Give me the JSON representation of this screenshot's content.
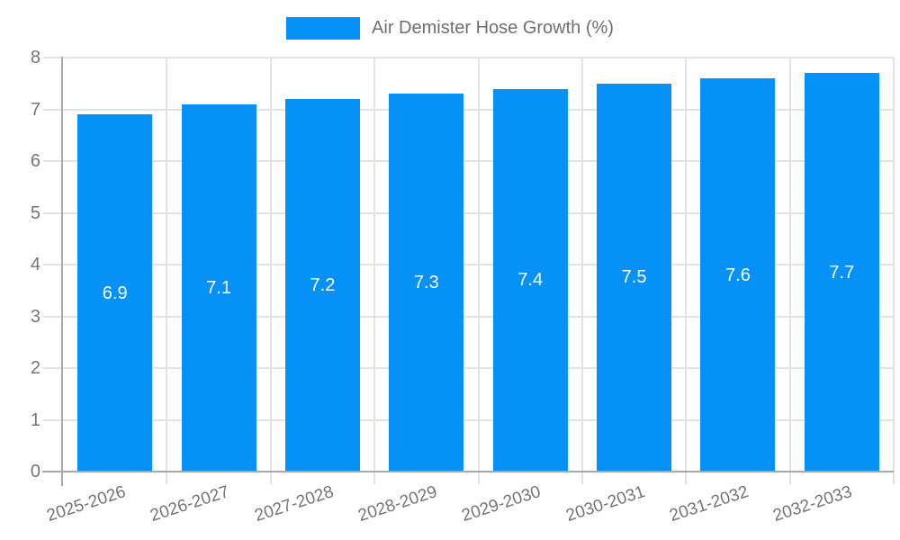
{
  "chart_data": {
    "type": "bar",
    "title": "Air Demister Hose Growth (%)",
    "legend_label": "Air Demister Hose Growth (%)",
    "legend_position": "top",
    "categories": [
      "2025-2026",
      "2026-2027",
      "2027-2028",
      "2028-2029",
      "2029-2030",
      "2030-2031",
      "2031-2032",
      "2032-2033"
    ],
    "values": [
      6.9,
      7.1,
      7.2,
      7.3,
      7.4,
      7.5,
      7.6,
      7.7
    ],
    "value_labels": [
      "6.9",
      "7.1",
      "7.2",
      "7.3",
      "7.4",
      "7.5",
      "7.6",
      "7.7"
    ],
    "xlabel": "",
    "ylabel": "",
    "ylim": [
      0,
      8
    ],
    "yticks": [
      0,
      1,
      2,
      3,
      4,
      5,
      6,
      7,
      8
    ],
    "grid": true,
    "x_tick_rotation_deg": -18,
    "colors": {
      "bar": "#0591f5",
      "grid": "#e3e3e3",
      "axis": "#a8a8a8",
      "tick_label": "#757575",
      "legend_text": "#6e6e6e",
      "value_label": "#ffffff",
      "background": "#ffffff"
    }
  }
}
